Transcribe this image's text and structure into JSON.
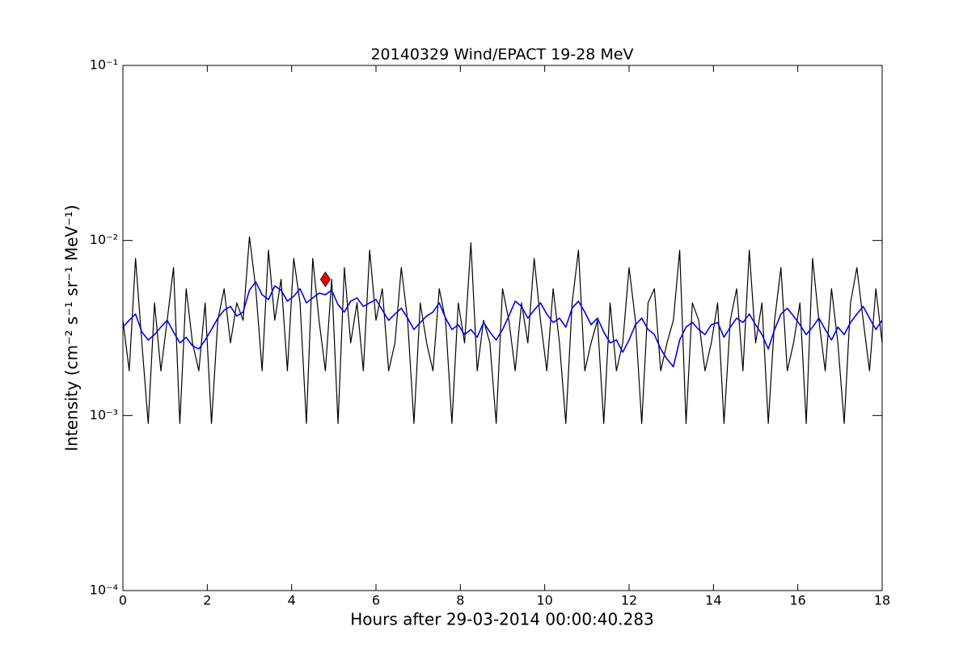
{
  "chart_data": {
    "type": "line",
    "title": "20140329 Wind/EPACT 19-28 MeV",
    "xlabel": "Hours after 29-03-2014 00:00:40.283",
    "ylabel": "Intensity (cm⁻² s⁻¹ sr⁻¹ MeV⁻¹)",
    "xlim": [
      0,
      18
    ],
    "xticks": [
      0,
      2,
      4,
      6,
      8,
      10,
      12,
      14,
      16,
      18
    ],
    "ylim": [
      0.0001,
      0.1
    ],
    "ylog": true,
    "yticks": [
      {
        "value": 0.0001,
        "label": "10⁻⁴"
      },
      {
        "value": 0.001,
        "label": "10⁻³"
      },
      {
        "value": 0.01,
        "label": "10⁻²"
      },
      {
        "value": 0.1,
        "label": "10⁻¹"
      }
    ],
    "grid": false,
    "x": [
      0,
      0.15,
      0.3,
      0.45,
      0.6,
      0.75,
      0.9,
      1.05,
      1.2,
      1.35,
      1.5,
      1.65,
      1.8,
      1.95,
      2.1,
      2.25,
      2.4,
      2.55,
      2.7,
      2.85,
      3,
      3.15,
      3.3,
      3.45,
      3.6,
      3.75,
      3.9,
      4.05,
      4.2,
      4.35,
      4.5,
      4.65,
      4.8,
      4.95,
      5.1,
      5.25,
      5.4,
      5.55,
      5.7,
      5.85,
      6,
      6.15,
      6.3,
      6.45,
      6.6,
      6.75,
      6.9,
      7.05,
      7.2,
      7.35,
      7.5,
      7.65,
      7.8,
      7.95,
      8.1,
      8.25,
      8.4,
      8.55,
      8.7,
      8.85,
      9,
      9.15,
      9.3,
      9.45,
      9.6,
      9.75,
      9.9,
      10.05,
      10.2,
      10.35,
      10.5,
      10.65,
      10.8,
      10.95,
      11.1,
      11.25,
      11.4,
      11.55,
      11.7,
      11.85,
      12,
      12.15,
      12.3,
      12.45,
      12.6,
      12.75,
      12.9,
      13.05,
      13.2,
      13.35,
      13.5,
      13.65,
      13.8,
      13.95,
      14.1,
      14.25,
      14.4,
      14.55,
      14.7,
      14.85,
      15,
      15.15,
      15.3,
      15.45,
      15.6,
      15.75,
      15.9,
      16.05,
      16.2,
      16.35,
      16.5,
      16.65,
      16.8,
      16.95,
      17.1,
      17.25,
      17.4,
      17.55,
      17.7,
      17.85,
      18
    ],
    "series": [
      {
        "color": "#000000",
        "values": [
          0.0035,
          0.0018,
          0.0079,
          0.0026,
          0.0009,
          0.0044,
          0.0018,
          0.0035,
          0.007,
          0.0009,
          0.0053,
          0.0026,
          0.0018,
          0.0044,
          0.0009,
          0.0035,
          0.0053,
          0.0026,
          0.0044,
          0.0035,
          0.0105,
          0.0053,
          0.0018,
          0.0088,
          0.0035,
          0.006,
          0.0018,
          0.0079,
          0.0044,
          0.0009,
          0.0079,
          0.0035,
          0.0018,
          0.006,
          0.0009,
          0.007,
          0.0026,
          0.0044,
          0.0018,
          0.0088,
          0.0035,
          0.0053,
          0.0018,
          0.0026,
          0.007,
          0.0035,
          0.0009,
          0.0044,
          0.0026,
          0.0018,
          0.0053,
          0.0035,
          0.0009,
          0.0044,
          0.0026,
          0.0097,
          0.0018,
          0.0035,
          0.0026,
          0.0009,
          0.0053,
          0.0035,
          0.0018,
          0.0044,
          0.0026,
          0.0079,
          0.0035,
          0.0018,
          0.0053,
          0.0026,
          0.0009,
          0.0044,
          0.0088,
          0.0018,
          0.0026,
          0.0035,
          0.0009,
          0.0044,
          0.0018,
          0.0026,
          0.007,
          0.0035,
          0.0009,
          0.0044,
          0.0053,
          0.0018,
          0.0026,
          0.0035,
          0.0088,
          0.0009,
          0.0044,
          0.0035,
          0.0018,
          0.0026,
          0.0044,
          0.0009,
          0.0035,
          0.0053,
          0.0018,
          0.0088,
          0.0026,
          0.0044,
          0.0009,
          0.0035,
          0.007,
          0.0018,
          0.0026,
          0.0044,
          0.0009,
          0.0079,
          0.0035,
          0.0018,
          0.0053,
          0.0026,
          0.0009,
          0.0044,
          0.007,
          0.0035,
          0.0018,
          0.0053,
          0.0026
        ]
      },
      {
        "color": "#0000ee",
        "values": [
          0.0032,
          0.0035,
          0.0038,
          0.003,
          0.0027,
          0.0029,
          0.0032,
          0.0035,
          0.003,
          0.0026,
          0.0028,
          0.0025,
          0.0024,
          0.0027,
          0.0031,
          0.0036,
          0.004,
          0.0042,
          0.0037,
          0.0039,
          0.0052,
          0.0058,
          0.0049,
          0.0046,
          0.0055,
          0.0052,
          0.0045,
          0.0048,
          0.0053,
          0.0044,
          0.0047,
          0.005,
          0.0049,
          0.0052,
          0.0043,
          0.0039,
          0.0045,
          0.0047,
          0.0042,
          0.0044,
          0.0046,
          0.004,
          0.0035,
          0.0038,
          0.0041,
          0.0036,
          0.0031,
          0.0034,
          0.0037,
          0.0039,
          0.0044,
          0.0036,
          0.0031,
          0.0033,
          0.0029,
          0.0031,
          0.0028,
          0.0034,
          0.003,
          0.0027,
          0.0031,
          0.0037,
          0.0045,
          0.0042,
          0.0036,
          0.004,
          0.0044,
          0.0038,
          0.0034,
          0.0036,
          0.0032,
          0.0041,
          0.0045,
          0.0039,
          0.0033,
          0.0036,
          0.003,
          0.0026,
          0.0027,
          0.0023,
          0.0027,
          0.0033,
          0.0036,
          0.0031,
          0.0029,
          0.0024,
          0.0021,
          0.0019,
          0.0027,
          0.0032,
          0.0034,
          0.0031,
          0.0029,
          0.0033,
          0.0034,
          0.0028,
          0.0032,
          0.0036,
          0.0034,
          0.0038,
          0.0033,
          0.0029,
          0.0024,
          0.0031,
          0.0038,
          0.0041,
          0.0037,
          0.0033,
          0.0029,
          0.0032,
          0.0036,
          0.0031,
          0.0027,
          0.0032,
          0.0029,
          0.0034,
          0.0038,
          0.0042,
          0.0036,
          0.0031,
          0.0035
        ]
      }
    ],
    "marker": {
      "x": 4.8,
      "y": 0.006,
      "color": "#ee0000"
    }
  }
}
